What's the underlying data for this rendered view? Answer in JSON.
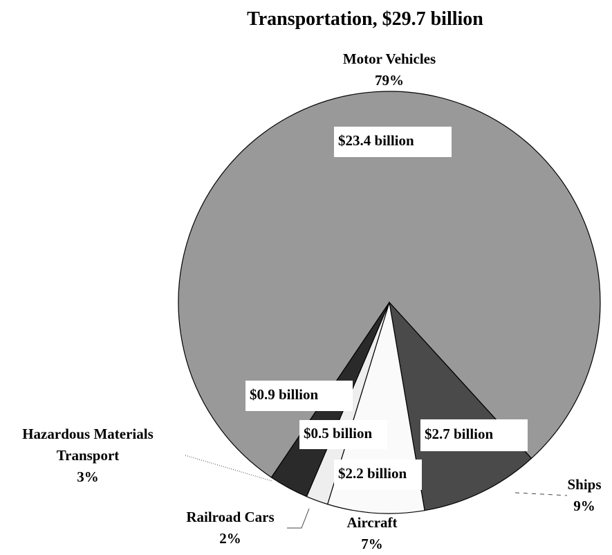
{
  "chart_data": {
    "type": "pie",
    "title": "Transportation, $29.7 billion",
    "categories": [
      "Motor Vehicles",
      "Ships",
      "Aircraft",
      "Railroad Cars",
      "Hazardous Materials Transport"
    ],
    "values": [
      23.4,
      2.7,
      2.2,
      0.5,
      0.9
    ],
    "value_labels": [
      "$23.4 billion",
      "$2.7 billion",
      "$2.2 billion",
      "$0.5 billion",
      "$0.9 billion"
    ],
    "percent_labels": [
      "79%",
      "9%",
      "7%",
      "2%",
      "3%"
    ],
    "colors": [
      "#999999",
      "#4a4a4a",
      "#fafafa",
      "#eeeeee",
      "#2a2a2a"
    ]
  }
}
